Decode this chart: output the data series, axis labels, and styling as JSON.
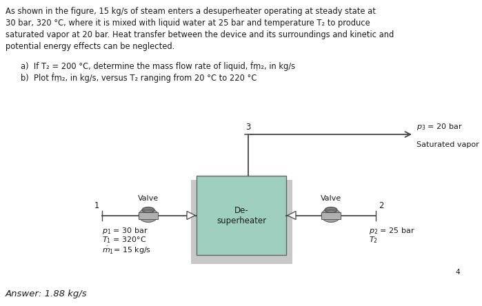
{
  "bg_color": "#ffffff",
  "text_color": "#1a1a1a",
  "problem_lines": [
    "As shown in the figure, 15 kg/s of steam enters a desuperheater operating at steady state at",
    "30 bar, 320 °C, where it is mixed with liquid water at 25 bar and temperature T₂ to produce",
    "saturated vapor at 20 bar. Heat transfer between the device and its surroundings and kinetic and",
    "potential energy effects can be neglected."
  ],
  "sub_a": "a)  If T₂ = 200 °C, determine the mass flow rate of liquid, ḟṃ₂, in kg/s",
  "sub_b": "b)  Plot ḟṃ₂, in kg/s, versus T₂ ranging from 20 °C to 220 °C",
  "answer_text": "Answer: 1.88 kg/s",
  "box_facecolor": "#9ecfbe",
  "box_outer_color": "#c8c8c8",
  "pipe_color": "#444444",
  "valve_body_color": "#999999",
  "valve_cap_color": "#888888"
}
